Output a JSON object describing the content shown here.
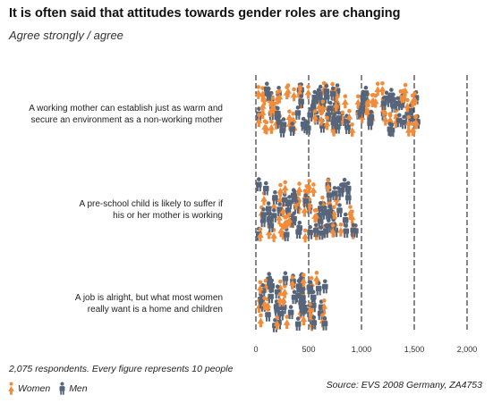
{
  "chart_data": {
    "type": "pictogram",
    "title": "It is often said that attitudes towards gender roles are changing",
    "subtitle": "Agree strongly / agree",
    "unit_per_figure": 10,
    "xlim": [
      0,
      2000
    ],
    "x_ticks": [
      "0",
      "500",
      "1,000",
      "1,500",
      "2,000"
    ],
    "x_tick_values": [
      0,
      500,
      1000,
      1500,
      2000
    ],
    "categories": [
      "A working mother can establish just as warm and secure an environment as a non-working mother",
      "A pre-school child is likely to suffer if his or her mother is working",
      "A job is alright, but what most women really want is a home and children"
    ],
    "category_lines": [
      [
        "A working mother can establish just as warm and",
        "secure an environment as a non-working mother"
      ],
      [
        "A pre-school child is likely to suffer if",
        "his or her mother is working"
      ],
      [
        "A job is alright, but what most women",
        "really want is a home and children"
      ]
    ],
    "series": [
      {
        "name": "Women",
        "values": [
          800,
          430,
          260
        ],
        "color": "#f28c3a"
      },
      {
        "name": "Men",
        "values": [
          760,
          540,
          430
        ],
        "color": "#56657a"
      }
    ],
    "note": "2,075 respondents. Every figure represents 10 people",
    "source": "Source: EVS 2008 Germany, ZA4753",
    "grid": true
  }
}
